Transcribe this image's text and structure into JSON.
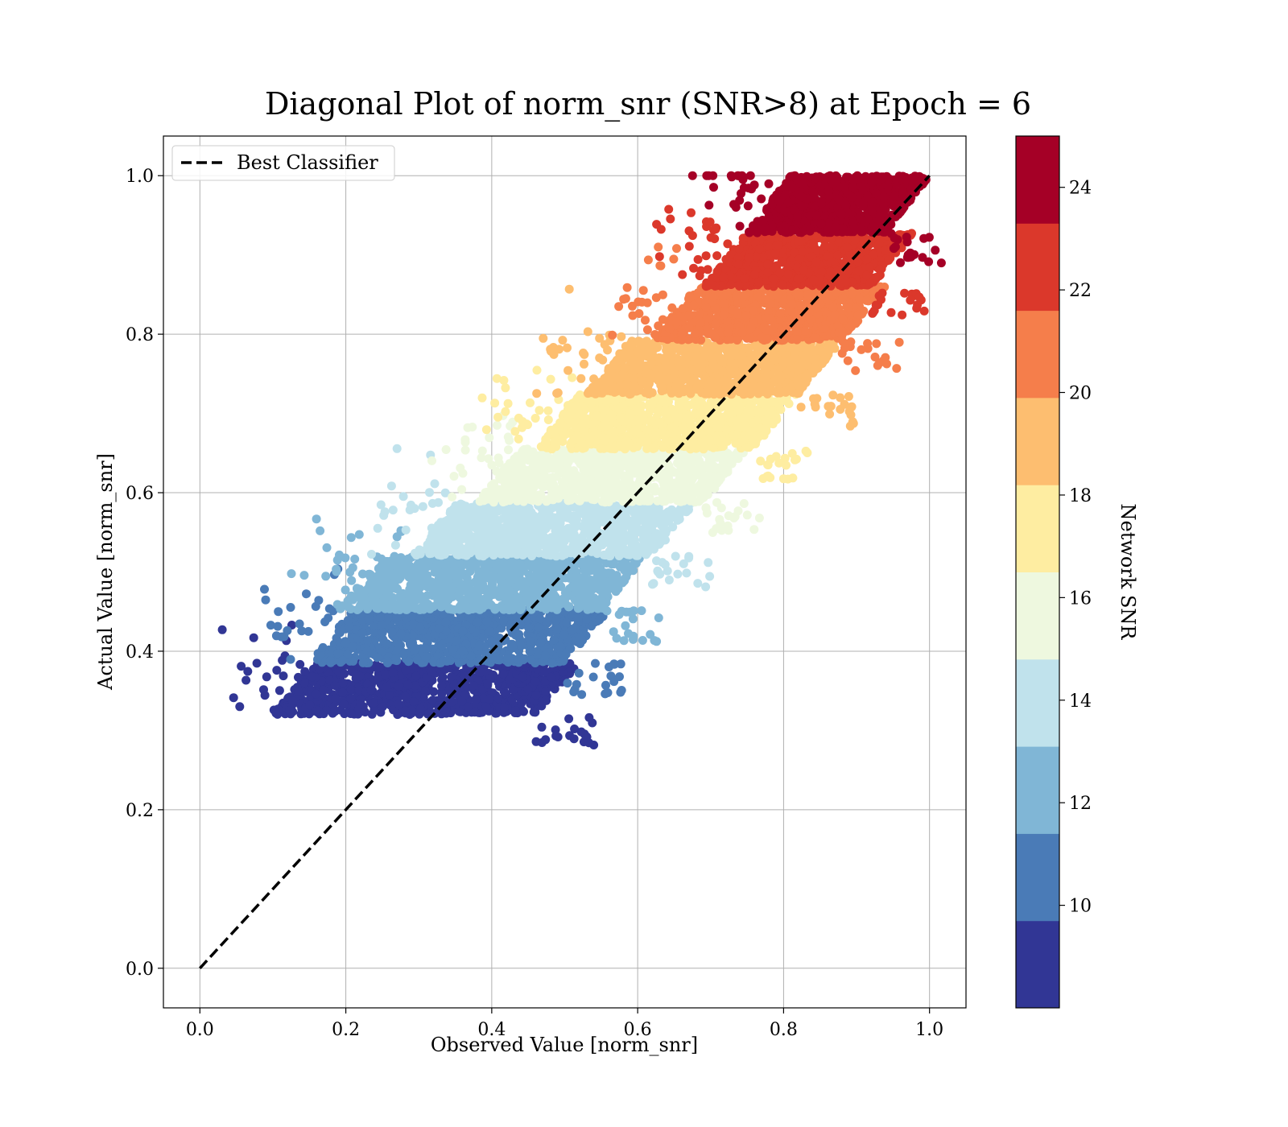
{
  "chart_data": {
    "type": "scatter",
    "title": "Diagonal Plot of norm_snr (SNR>8) at Epoch = 6",
    "xlabel": "Observed Value [norm_snr]",
    "ylabel": "Actual Value [norm_snr]",
    "xlim": [
      -0.05,
      1.05
    ],
    "ylim": [
      -0.05,
      1.05
    ],
    "x_ticks": [
      "0.0",
      "0.2",
      "0.4",
      "0.6",
      "0.8",
      "1.0"
    ],
    "y_ticks": [
      "0.0",
      "0.2",
      "0.4",
      "0.6",
      "0.8",
      "1.0"
    ],
    "grid": true,
    "legend": {
      "position": "top-left",
      "entries": [
        {
          "label": "Best Classifier",
          "style": "black dashed line"
        }
      ]
    },
    "reference_line": {
      "label": "Best Classifier",
      "x": [
        0,
        1
      ],
      "y": [
        0,
        1
      ],
      "color": "#000000",
      "dash": true
    },
    "colorbar": {
      "label": "Network SNR",
      "range": [
        8,
        25
      ],
      "ticks": [
        "10",
        "12",
        "14",
        "16",
        "18",
        "20",
        "22",
        "24"
      ],
      "colormap": "RdYlBu_r",
      "bands": [
        {
          "from": 8.0,
          "to": 9.7,
          "color": "#313695"
        },
        {
          "from": 9.7,
          "to": 11.4,
          "color": "#4a7bb7"
        },
        {
          "from": 11.4,
          "to": 13.1,
          "color": "#80b6d6"
        },
        {
          "from": 13.1,
          "to": 14.8,
          "color": "#c0e2ec"
        },
        {
          "from": 14.8,
          "to": 16.5,
          "color": "#eef8df"
        },
        {
          "from": 16.5,
          "to": 18.2,
          "color": "#feeda1"
        },
        {
          "from": 18.2,
          "to": 19.9,
          "color": "#fdbe70"
        },
        {
          "from": 19.9,
          "to": 21.6,
          "color": "#f57e4b"
        },
        {
          "from": 21.6,
          "to": 23.3,
          "color": "#db382b"
        },
        {
          "from": 23.3,
          "to": 25.0,
          "color": "#a50026"
        }
      ]
    },
    "point_bands": [
      {
        "snr_band": 0,
        "actual_range": [
          0.32,
          0.385
        ],
        "observed_range": [
          0.1,
          0.52
        ]
      },
      {
        "snr_band": 1,
        "actual_range": [
          0.385,
          0.452
        ],
        "observed_range": [
          0.15,
          0.56
        ]
      },
      {
        "snr_band": 2,
        "actual_range": [
          0.452,
          0.52
        ],
        "observed_range": [
          0.19,
          0.61
        ]
      },
      {
        "snr_band": 3,
        "actual_range": [
          0.52,
          0.588
        ],
        "observed_range": [
          0.29,
          0.68
        ]
      },
      {
        "snr_band": 4,
        "actual_range": [
          0.588,
          0.655
        ],
        "observed_range": [
          0.38,
          0.75
        ]
      },
      {
        "snr_band": 5,
        "actual_range": [
          0.655,
          0.724
        ],
        "observed_range": [
          0.46,
          0.82
        ]
      },
      {
        "snr_band": 6,
        "actual_range": [
          0.724,
          0.792
        ],
        "observed_range": [
          0.53,
          0.88
        ]
      },
      {
        "snr_band": 7,
        "actual_range": [
          0.792,
          0.86
        ],
        "observed_range": [
          0.62,
          0.94
        ]
      },
      {
        "snr_band": 8,
        "actual_range": [
          0.86,
          0.928
        ],
        "observed_range": [
          0.69,
          0.98
        ]
      },
      {
        "snr_band": 9,
        "actual_range": [
          0.928,
          1.0
        ],
        "observed_range": [
          0.75,
          1.0
        ]
      }
    ]
  }
}
